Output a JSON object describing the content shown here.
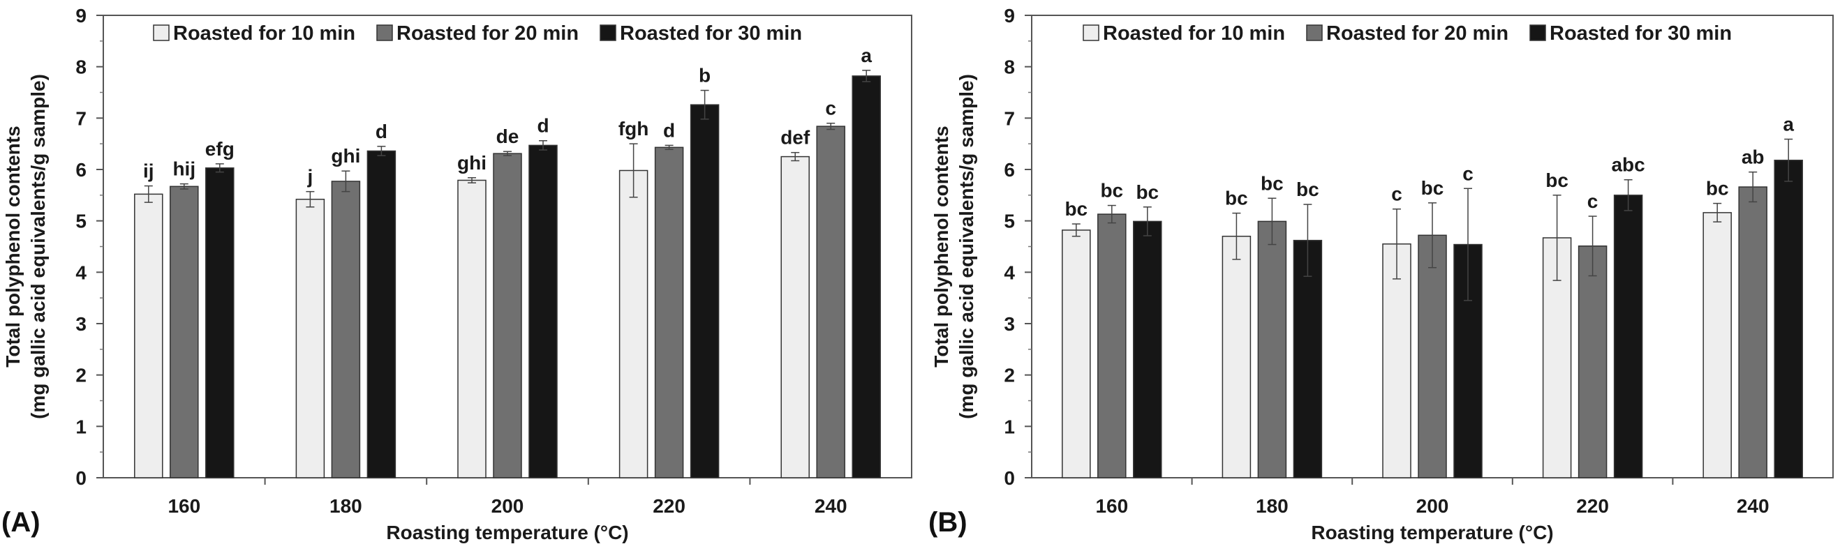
{
  "chart_data": [
    {
      "type": "bar",
      "panel_label": "(A)",
      "xlabel": "Roasting temperature (°C)",
      "ylabel": [
        "Total polyphenol contents",
        "(mg gallic acid equivalents/g sample)"
      ],
      "categories": [
        "160",
        "180",
        "200",
        "220",
        "240"
      ],
      "ylim": [
        0,
        9
      ],
      "yticks": [
        0,
        1,
        2,
        3,
        4,
        5,
        6,
        7,
        8,
        9
      ],
      "legend_position": "top-left",
      "series": [
        {
          "name": "Roasted for 10 min",
          "color": "#eeeeee",
          "values": [
            5.52,
            5.42,
            5.79,
            5.98,
            6.25
          ],
          "errors": [
            0.16,
            0.15,
            0.05,
            0.52,
            0.08
          ],
          "labels": [
            "ij",
            "j",
            "ghi",
            "fgh",
            "def"
          ]
        },
        {
          "name": "Roasted for 20 min",
          "color": "#707070",
          "values": [
            5.67,
            5.77,
            6.31,
            6.43,
            6.84
          ],
          "errors": [
            0.05,
            0.2,
            0.04,
            0.04,
            0.06
          ],
          "labels": [
            "hij",
            "ghi",
            "de",
            "d",
            "c"
          ]
        },
        {
          "name": "Roasted for 30 min",
          "color": "#161616",
          "values": [
            6.03,
            6.36,
            6.47,
            7.26,
            7.82
          ],
          "errors": [
            0.08,
            0.09,
            0.09,
            0.28,
            0.11
          ],
          "labels": [
            "efg",
            "d",
            "d",
            "b",
            "a"
          ]
        }
      ]
    },
    {
      "type": "bar",
      "panel_label": "(B)",
      "xlabel": "Roasting temperature (°C)",
      "ylabel": [
        "Total polyphenol contents",
        "(mg gallic acid equivalents/g sample)"
      ],
      "categories": [
        "160",
        "180",
        "200",
        "220",
        "240"
      ],
      "ylim": [
        0,
        9
      ],
      "yticks": [
        0,
        1,
        2,
        3,
        4,
        5,
        6,
        7,
        8,
        9
      ],
      "legend_position": "top-left",
      "series": [
        {
          "name": "Roasted for 10 min",
          "color": "#eeeeee",
          "values": [
            4.82,
            4.7,
            4.55,
            4.67,
            5.16
          ],
          "errors": [
            0.12,
            0.45,
            0.68,
            0.83,
            0.18
          ],
          "labels": [
            "bc",
            "bc",
            "c",
            "bc",
            "bc"
          ]
        },
        {
          "name": "Roasted for 20 min",
          "color": "#707070",
          "values": [
            5.13,
            4.99,
            4.72,
            4.51,
            5.66
          ],
          "errors": [
            0.17,
            0.45,
            0.63,
            0.58,
            0.29
          ],
          "labels": [
            "bc",
            "bc",
            "bc",
            "c",
            "ab"
          ]
        },
        {
          "name": "Roasted for 30 min",
          "color": "#161616",
          "values": [
            4.99,
            4.62,
            4.54,
            5.5,
            6.18
          ],
          "errors": [
            0.28,
            0.7,
            1.09,
            0.3,
            0.41
          ],
          "labels": [
            "bc",
            "bc",
            "c",
            "abc",
            "a"
          ]
        }
      ]
    }
  ]
}
